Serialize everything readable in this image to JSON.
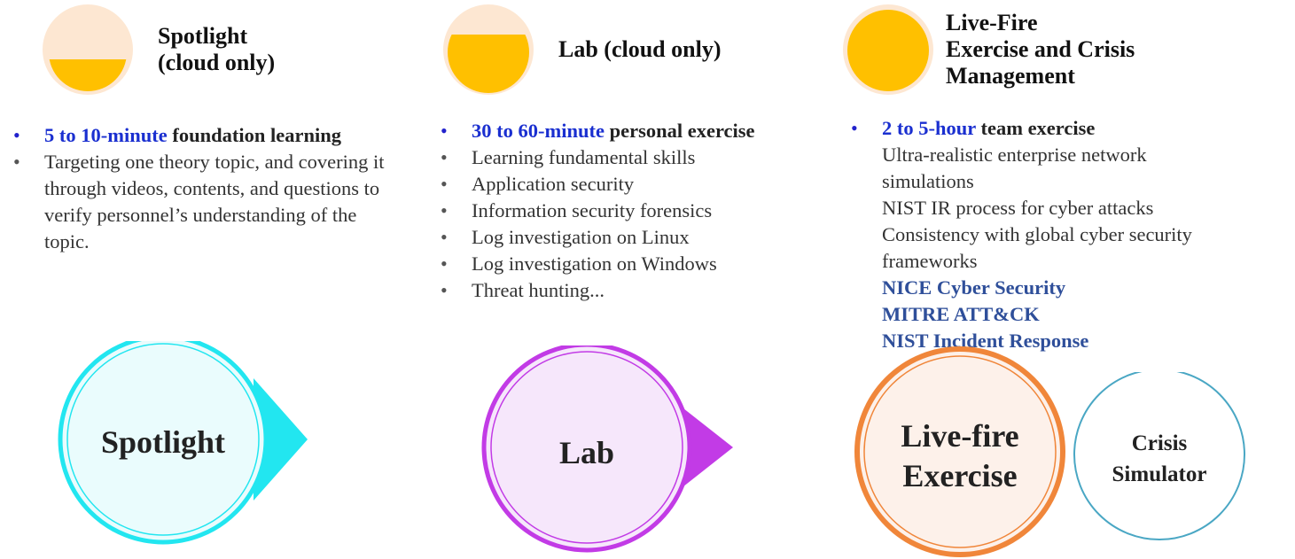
{
  "columns": [
    {
      "id": "spotlight",
      "title": "Spotlight\n(cloud only)",
      "level_fill": 0.35,
      "items": [
        {
          "highlight": "5 to 10-minute",
          "bold": " foundation learning",
          "text": ""
        },
        {
          "highlight": "",
          "bold": "",
          "text": "Targeting  one theory topic, and covering it through videos, contents, and questions to verify personnel’s understanding of the topic."
        }
      ],
      "shape_label": "Spotlight"
    },
    {
      "id": "lab",
      "title": "Lab (cloud only)",
      "level_fill": 0.7,
      "items": [
        {
          "highlight": "30 to 60-minute",
          "bold": " personal exercise",
          "text": ""
        },
        {
          "highlight": "",
          "bold": "",
          "text": "Learning fundamental skills"
        },
        {
          "highlight": "",
          "bold": "",
          "text": "Application security"
        },
        {
          "highlight": "",
          "bold": "",
          "text": "Information security forensics"
        },
        {
          "highlight": "",
          "bold": "",
          "text": "Log investigation  on Linux"
        },
        {
          "highlight": "",
          "bold": "",
          "text": "Log investigation  on Windows"
        },
        {
          "highlight": "",
          "bold": "",
          "text": "Threat hunting..."
        }
      ],
      "shape_label": "Lab"
    },
    {
      "id": "live-fire",
      "title": "Live-Fire\nExercise and Crisis\nManagement",
      "level_fill": 1.0,
      "items": [
        {
          "highlight": "2 to 5-hour",
          "bold": " team exercise",
          "text": ""
        }
      ],
      "sub_lines": [
        "Ultra-realistic  enterprise network simulations",
        "NIST IR process for cyber attacks",
        "Consistency with global cyber security frameworks"
      ],
      "frameworks": [
        "NICE Cyber Security",
        "MITRE ATT&CK",
        "NIST Incident Response"
      ],
      "shape_label": "Live-fire\nExercise",
      "secondary_label": "Crisis\nSimulator"
    }
  ],
  "colors": {
    "gauge_bg": "#fde7d2",
    "gauge_fill": "#ffc000",
    "spotlight": "#22e6f0",
    "lab": "#c23be6",
    "livefire": "#f0863a",
    "crisis": "#4aa7c4",
    "highlight": "#1a2fd0",
    "framework": "#2f4f9a"
  }
}
